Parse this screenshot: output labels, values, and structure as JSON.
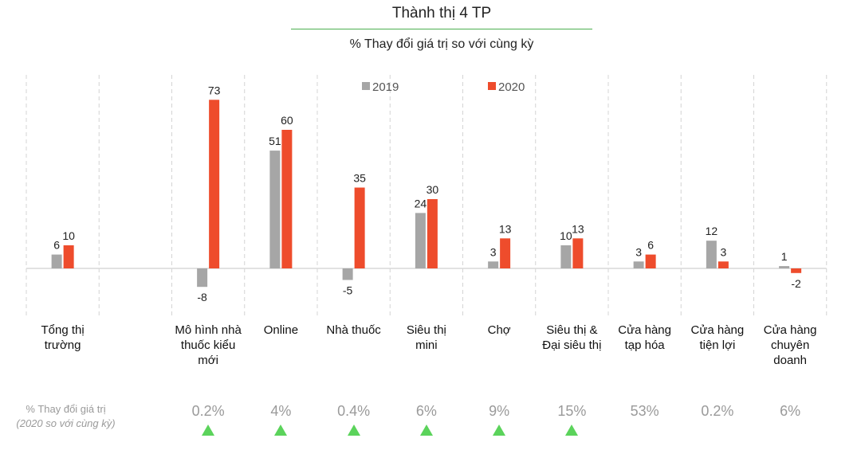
{
  "title": "Thành thị 4 TP",
  "subtitle": "% Thay đổi giá trị so với cùng kỳ",
  "colors": {
    "series_2019": "#a6a6a6",
    "series_2020": "#ee4c2c",
    "title_rule": "#4caf50",
    "up_arrow": "#5bd35b"
  },
  "chart_data": {
    "type": "bar",
    "title": "Thành thị 4 TP",
    "subtitle": "% Thay đổi giá trị so với cùng kỳ",
    "legend_position": "top-center",
    "grid": false,
    "categories": [
      [
        "Tổng thị",
        "trường"
      ],
      [
        "Mô hình nhà",
        "thuốc kiểu",
        "mới"
      ],
      [
        "Online"
      ],
      [
        "Nhà thuốc"
      ],
      [
        "Siêu thị",
        "mini"
      ],
      [
        "Chợ"
      ],
      [
        "Siêu thị &",
        "Đại siêu thị"
      ],
      [
        "Cửa hàng",
        "tạp hóa"
      ],
      [
        "Cửa hàng",
        "tiện lợi"
      ],
      [
        "Cửa hàng",
        "chuyên",
        "doanh"
      ]
    ],
    "series": [
      {
        "name": "2019",
        "values": [
          6,
          -8,
          51,
          -5,
          24,
          3,
          10,
          3,
          12,
          1
        ]
      },
      {
        "name": "2020",
        "values": [
          10,
          73,
          60,
          35,
          30,
          13,
          13,
          6,
          3,
          -2
        ]
      }
    ],
    "ylim": [
      -20,
      80
    ]
  },
  "footer": {
    "label_line1": "% Thay đổi giá trị",
    "label_line2": "(2020 so với cùng kỳ)",
    "values": [
      "0.2%",
      "4%",
      "0.4%",
      "6%",
      "9%",
      "15%",
      "53%",
      "0.2%",
      "6%"
    ],
    "up_arrows": [
      true,
      true,
      true,
      true,
      true,
      true,
      false,
      false,
      false
    ],
    "arrow_icon": "up-triangle-icon"
  }
}
